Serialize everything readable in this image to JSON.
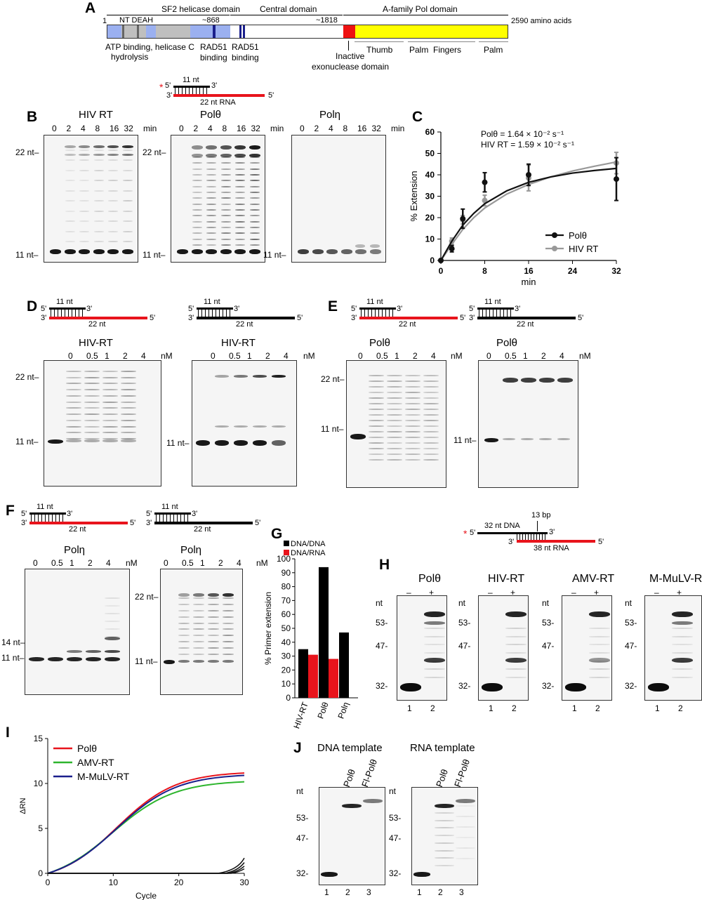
{
  "panelA": {
    "label": "A",
    "domains": [
      "SF2 helicase domain",
      "Central domain",
      "A-family Pol domain"
    ],
    "start": "1",
    "motifs": "NT DEAH",
    "pos868": "~868",
    "pos1818": "~1818",
    "end": "2590 amino acids",
    "below_atp": "ATP binding, helicase C",
    "below_hydro": "hydrolysis",
    "rad51_a": "RAD51",
    "rad51_a2": "binding",
    "rad51_b": "RAD51",
    "rad51_b2": "binding",
    "inactive1": "Inactive",
    "inactive2": "exonuclease domain",
    "subdomains": [
      "Thumb",
      "Palm",
      "Fingers",
      "Palm"
    ]
  },
  "substrate_B": {
    "five": "5'",
    "three": "3'",
    "top": "11 nt",
    "three_b": "3'",
    "five_b": "5'",
    "bottom": "22 nt RNA"
  },
  "panelB": {
    "label": "B",
    "min_unit": "min",
    "times": [
      "0",
      "2",
      "4",
      "8",
      "16",
      "32"
    ],
    "gels": [
      {
        "title": "HIV RT",
        "top": "22 nt",
        "bottom": "11 nt"
      },
      {
        "title": "Polθ",
        "top": "22 nt",
        "bottom": "11 nt"
      },
      {
        "title": "Polη",
        "top": "",
        "bottom": "11 nt"
      }
    ]
  },
  "panelC": {
    "label": "C"
  },
  "chart_data": {
    "type": "line",
    "ylabel": "% Extension",
    "xlabel": "min",
    "xlim": [
      0,
      32
    ],
    "ylim": [
      0,
      60
    ],
    "xticks": [
      0,
      8,
      16,
      24,
      32
    ],
    "yticks": [
      0,
      10,
      20,
      30,
      40,
      50,
      60
    ],
    "annotations": [
      "Polθ = 1.64 × 10⁻² s⁻¹",
      "HIV RT = 1.59 × 10⁻² s⁻¹"
    ],
    "legend_position": "bottom-right",
    "series": [
      {
        "name": "Polθ",
        "color": "#111111",
        "x": [
          0,
          2,
          4,
          8,
          16,
          32
        ],
        "y": [
          0,
          5.5,
          19.5,
          36.5,
          40,
          38
        ],
        "err": [
          0,
          1.5,
          4.5,
          4.5,
          5,
          10
        ],
        "fit": [
          [
            0,
            0
          ],
          [
            2,
            9
          ],
          [
            4,
            16.5
          ],
          [
            6,
            22
          ],
          [
            8,
            26.5
          ],
          [
            12,
            32.5
          ],
          [
            16,
            36.5
          ],
          [
            20,
            39
          ],
          [
            24,
            40.8
          ],
          [
            28,
            42
          ],
          [
            32,
            43
          ]
        ]
      },
      {
        "name": "HIV RT",
        "color": "#999999",
        "x": [
          0,
          2,
          4,
          8,
          16,
          32
        ],
        "y": [
          0,
          9,
          19,
          28,
          38.5,
          45.5
        ],
        "err": [
          0,
          1.5,
          2,
          2.5,
          6,
          5
        ],
        "fit": [
          [
            0,
            0
          ],
          [
            2,
            7.5
          ],
          [
            4,
            14.5
          ],
          [
            6,
            20
          ],
          [
            8,
            24.5
          ],
          [
            12,
            31
          ],
          [
            16,
            35.5
          ],
          [
            20,
            39
          ],
          [
            24,
            41.8
          ],
          [
            28,
            44
          ],
          [
            32,
            46
          ]
        ]
      }
    ]
  },
  "substrate_D": {
    "top": "11 nt",
    "bottom": "22 nt",
    "five": "5'",
    "three": "3'",
    "three_b": "3'",
    "five_b": "5'"
  },
  "panelD": {
    "label": "D",
    "conc": [
      "0",
      "0.5",
      "1",
      "2",
      "4"
    ],
    "unit": "nM",
    "gels": [
      {
        "title": "HIV-RT",
        "top": "22 nt",
        "bottom": "11 nt"
      },
      {
        "title": "HIV-RT",
        "top": "",
        "bottom": "11 nt"
      }
    ]
  },
  "panelE": {
    "label": "E",
    "conc": [
      "0",
      "0.5",
      "1",
      "2",
      "4"
    ],
    "unit": "nM",
    "gels": [
      {
        "title": "Polθ",
        "top": "22 nt",
        "bottom": "11 nt"
      },
      {
        "title": "Polθ",
        "top": "",
        "bottom": "11 nt"
      }
    ]
  },
  "panelF": {
    "label": "F",
    "conc": [
      "0",
      "0.5",
      "1",
      "2",
      "4"
    ],
    "unit": "nM",
    "gels": [
      {
        "title": "Polη",
        "mid": "14 nt",
        "bottom": "11 nt"
      },
      {
        "title": "Polη",
        "top": "22 nt",
        "bottom": "11 nt"
      }
    ]
  },
  "panelG": {
    "label": "G",
    "ylabel": "% Primer extension",
    "legend": [
      "DNA/DNA",
      "DNA/RNA"
    ],
    "yticks": [
      0,
      10,
      20,
      30,
      40,
      50,
      60,
      70,
      80,
      90,
      100
    ],
    "categories": [
      "HIV-RT",
      "Polθ",
      "Polη"
    ],
    "dnadna": [
      35,
      94,
      47
    ],
    "dnarna": [
      31,
      28,
      null
    ],
    "colors": [
      "#000000",
      "#e8141c"
    ]
  },
  "substrate_H": {
    "dna": "32 nt DNA",
    "bp": "13 bp",
    "rna": "38 nt RNA",
    "five": "5'",
    "three": "3'",
    "three_b": "3'",
    "five_b": "5'"
  },
  "panelH": {
    "label": "H",
    "nt": "nt",
    "markers": [
      "53-",
      "47-",
      "32-"
    ],
    "signs": [
      "–",
      "+"
    ],
    "lanes": [
      "1",
      "2"
    ],
    "gels": [
      "Polθ",
      "HIV-RT",
      "AMV-RT",
      "M-MuLV-RT"
    ]
  },
  "panelI": {
    "label": "I",
    "ylabel": "ΔRN",
    "xlabel": "Cycle",
    "xticks": [
      0,
      10,
      20,
      30
    ],
    "yticks": [
      0,
      5,
      10,
      15
    ],
    "legend": [
      {
        "name": "Polθ",
        "color": "#e8141c"
      },
      {
        "name": "AMV-RT",
        "color": "#2db52d"
      },
      {
        "name": "M-MuLV-RT",
        "color": "#1a1f8c"
      }
    ]
  },
  "panelJ": {
    "label": "J",
    "titles": [
      "DNA template",
      "RNA template"
    ],
    "lane_labels": [
      "Polθ",
      "Fl-Polθ"
    ],
    "nt": "nt",
    "markers": [
      "53-",
      "47-",
      "32-"
    ],
    "lanes": [
      "1",
      "2",
      "3"
    ]
  }
}
